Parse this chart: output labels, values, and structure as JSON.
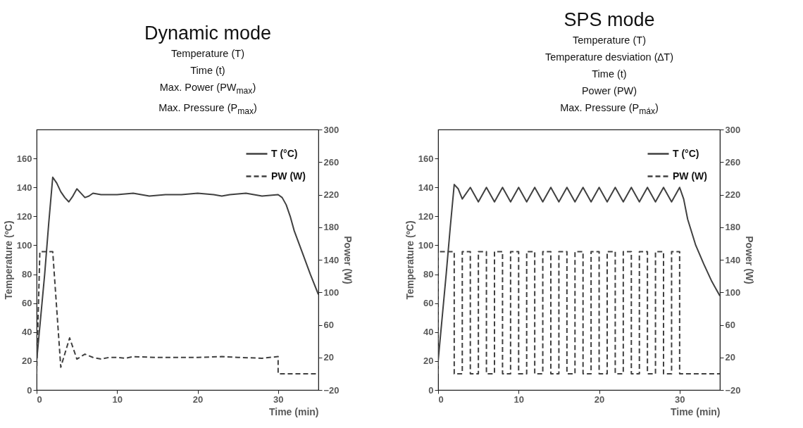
{
  "chart_data": [
    {
      "type": "line",
      "title": "Dynamic mode",
      "subtitle": "Temperature (T)\nTime (t)\nMax. Power (PW$_{max}$)\nMax. Pressure (P$_{max}$)",
      "xlabel": "Time (min)",
      "ylabel": "Temperature (ºC)",
      "y2label": "Power (W)",
      "xlim": [
        0,
        35
      ],
      "xticks": [
        0,
        10,
        20,
        30
      ],
      "ylim": [
        0,
        180
      ],
      "yticks": [
        0,
        20,
        40,
        60,
        80,
        100,
        120,
        140,
        160
      ],
      "y2lim": [
        -20,
        300
      ],
      "y2ticks": [
        -20,
        20,
        60,
        100,
        140,
        180,
        220,
        260,
        300
      ],
      "legend": "top right",
      "series": [
        {
          "name": "T (°C)",
          "color": "#404040",
          "line_style": "solid",
          "x": [
            0,
            0.5,
            1,
            1.5,
            2,
            2.5,
            3,
            3.5,
            4,
            4.5,
            5,
            5.5,
            6,
            6.5,
            7,
            8,
            10,
            12,
            14,
            16,
            18,
            20,
            22,
            23,
            24,
            26,
            28,
            30,
            30.5,
            31,
            31.5,
            32,
            33,
            34,
            35
          ],
          "values": [
            20,
            50,
            80,
            115,
            147,
            143,
            137,
            133,
            130,
            134,
            139,
            136,
            133,
            134,
            136,
            135,
            135,
            136,
            134,
            135,
            135,
            136,
            135,
            134,
            135,
            136,
            134,
            135,
            133,
            128,
            120,
            110,
            95,
            80,
            66
          ]
        },
        {
          "name": "PW (W)",
          "color": "#404040",
          "line_style": "dashed",
          "axis": "y2",
          "x": [
            0,
            0.4,
            2,
            3,
            4.1,
            5,
            6,
            7,
            8,
            9,
            10,
            11,
            12,
            15,
            20,
            23,
            25,
            28,
            30,
            30,
            35
          ],
          "values": [
            0,
            150,
            150,
            8,
            44,
            18,
            24,
            20,
            18,
            20,
            20,
            19,
            21,
            20,
            20,
            21,
            20,
            19,
            21,
            0,
            0
          ]
        }
      ]
    },
    {
      "type": "line",
      "title": "SPS mode",
      "subtitle": "Temperature (T)\nTemperature desviation (∆T)\nTime (t)\nPower (PW)\nMax. Pressure (P$_{máx}$)",
      "xlabel": "Time (min)",
      "ylabel": "Temperature (ºC)",
      "y2label": "Power (W)",
      "xlim": [
        0,
        35
      ],
      "xticks": [
        0,
        10,
        20,
        30
      ],
      "ylim": [
        0,
        180
      ],
      "yticks": [
        0,
        20,
        40,
        60,
        80,
        100,
        120,
        140,
        160
      ],
      "y2lim": [
        -20,
        300
      ],
      "y2ticks": [
        -20,
        20,
        60,
        100,
        140,
        180,
        220,
        260,
        300
      ],
      "legend": "top right",
      "series": [
        {
          "name": "T (°C)",
          "color": "#404040",
          "line_style": "solid",
          "x": [
            0,
            0.5,
            1,
            1.5,
            2,
            2.5,
            3,
            4,
            5,
            6,
            7,
            8,
            9,
            10,
            11,
            12,
            13,
            14,
            15,
            16,
            17,
            18,
            19,
            20,
            21,
            22,
            23,
            24,
            25,
            26,
            27,
            28,
            29,
            30,
            30.5,
            31,
            32,
            33,
            34,
            35
          ],
          "values": [
            20,
            50,
            80,
            112,
            142,
            139,
            132,
            140,
            130,
            140,
            130,
            140,
            130,
            140,
            130,
            140,
            130,
            140,
            130,
            140,
            130,
            140,
            130,
            140,
            130,
            140,
            130,
            140,
            130,
            140,
            130,
            140,
            130,
            140,
            132,
            118,
            100,
            87,
            75,
            65
          ]
        },
        {
          "name": "PW (W)",
          "color": "#404040",
          "line_style": "dashed",
          "axis": "y2",
          "x": [
            0,
            0,
            2,
            2,
            3,
            3,
            4,
            4,
            5,
            5,
            6,
            6,
            7,
            7,
            8,
            8,
            9,
            9,
            10,
            10,
            11,
            11,
            12,
            12,
            13,
            13,
            14,
            14,
            15,
            15,
            16,
            16,
            17,
            17,
            18,
            18,
            19,
            19,
            20,
            20,
            21,
            21,
            22,
            22,
            23,
            23,
            24,
            24,
            25,
            25,
            26,
            26,
            27,
            27,
            28,
            28,
            29,
            29,
            30,
            30,
            35
          ],
          "values": [
            0,
            150,
            150,
            0,
            0,
            150,
            150,
            0,
            0,
            150,
            150,
            0,
            0,
            150,
            150,
            0,
            0,
            150,
            150,
            0,
            0,
            150,
            150,
            0,
            0,
            150,
            150,
            0,
            0,
            150,
            150,
            0,
            0,
            150,
            150,
            0,
            0,
            150,
            150,
            0,
            0,
            150,
            150,
            0,
            0,
            150,
            150,
            0,
            0,
            150,
            150,
            0,
            0,
            150,
            150,
            0,
            0,
            150,
            150,
            0,
            0
          ]
        }
      ]
    }
  ]
}
